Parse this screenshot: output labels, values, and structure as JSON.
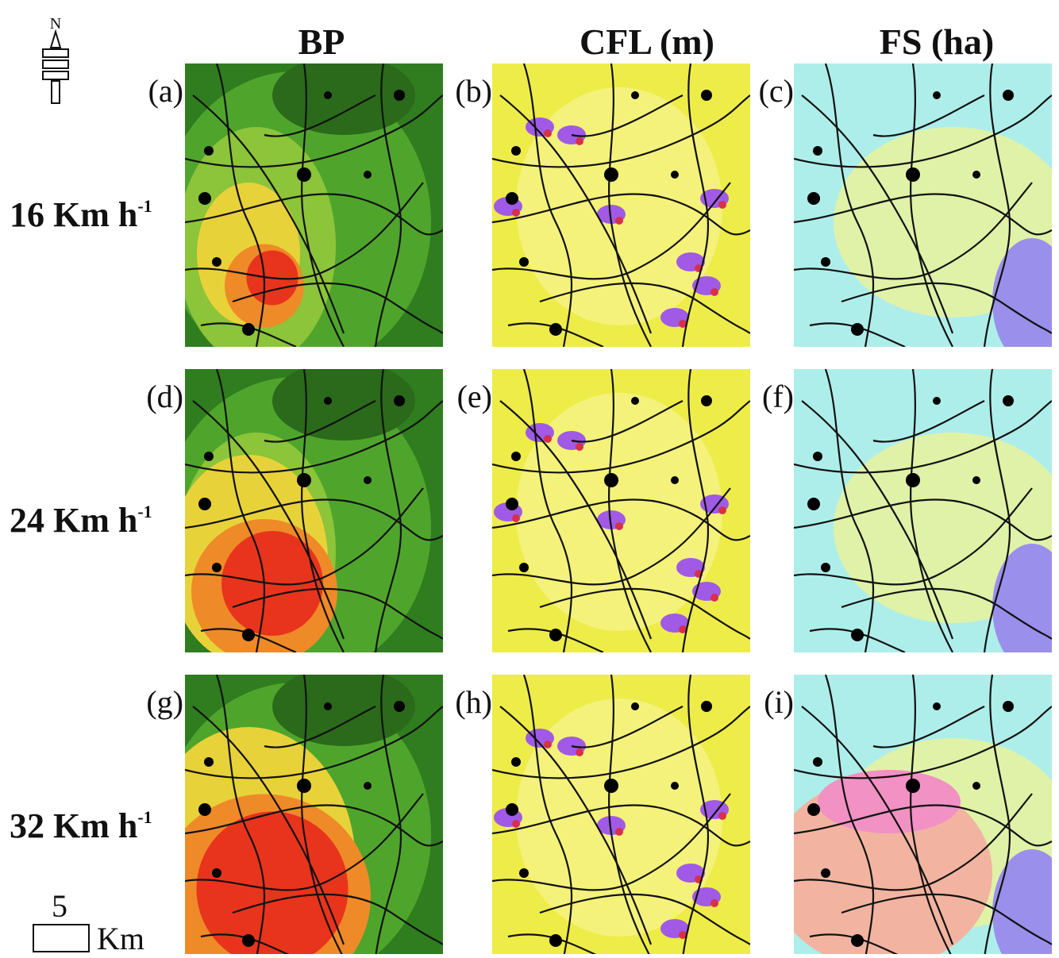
{
  "columns": [
    "BP",
    "CFL (m)",
    "FS (ha)"
  ],
  "rows": [
    {
      "label": "16 Km h",
      "superscript": "-1",
      "panels": [
        "(a)",
        "(b)",
        "(c)"
      ]
    },
    {
      "label": "24 Km h",
      "superscript": "-1",
      "panels": [
        "(d)",
        "(e)",
        "(f)"
      ]
    },
    {
      "label": "32 Km h",
      "superscript": "-1",
      "panels": [
        "(g)",
        "(h)",
        "(i)"
      ]
    }
  ],
  "north": "N",
  "scale": {
    "value": "5",
    "unit": "Km"
  }
}
